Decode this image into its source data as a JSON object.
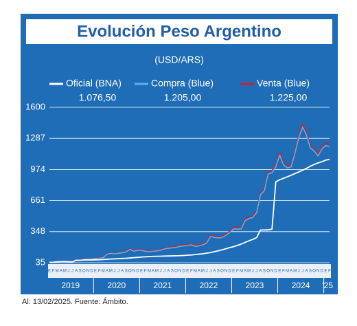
{
  "chart_data": {
    "type": "line",
    "title": "Evolución Peso Argentino",
    "subtitle": "(USD/ARS)",
    "note": "Al: 13/02/2025. Fuente: Ámbito.",
    "categories": [
      "E",
      "F",
      "M",
      "A",
      "M",
      "J",
      "J",
      "A",
      "S",
      "O",
      "N",
      "D",
      "E",
      "F",
      "M",
      "A",
      "M",
      "J",
      "J",
      "A",
      "S",
      "O",
      "N",
      "D",
      "E",
      "F",
      "M",
      "A",
      "M",
      "J",
      "J",
      "A",
      "S",
      "O",
      "N",
      "D",
      "E",
      "F",
      "M",
      "A",
      "M",
      "J",
      "J",
      "A",
      "S",
      "O",
      "N",
      "D",
      "E",
      "F",
      "M",
      "A",
      "M",
      "J",
      "J",
      "A",
      "S",
      "O",
      "N",
      "D",
      "E",
      "F",
      "M",
      "A",
      "M",
      "J",
      "J",
      "A",
      "S",
      "O",
      "N",
      "D",
      "E",
      "F"
    ],
    "years": [
      "2019",
      "2020",
      "2021",
      "2022",
      "2023",
      "2024",
      "'25"
    ],
    "series": [
      {
        "name": "Venta (Blue)",
        "color": "#d0202a",
        "latest": {
          "value": 1225,
          "label": "1.225,00"
        },
        "values": [
          40,
          42,
          45,
          47,
          48,
          46,
          46,
          63,
          63,
          71,
          73,
          75,
          81,
          83,
          89,
          125,
          136,
          130,
          136,
          141,
          152,
          178,
          158,
          167,
          167,
          157,
          152,
          157,
          162,
          168,
          183,
          188,
          194,
          199,
          209,
          214,
          220,
          225,
          210,
          215,
          225,
          245,
          312,
          302,
          297,
          302,
          322,
          352,
          389,
          390,
          390,
          478,
          496,
          506,
          556,
          740,
          780,
          960,
          960,
          1025,
          1145,
          1040,
          1010,
          1020,
          1165,
          1325,
          1430,
          1345,
          1215,
          1185,
          1130,
          1205,
          1240,
          1225
        ]
      },
      {
        "name": "Compra (Blue)",
        "color": "#5ab4e8",
        "latest": {
          "value": 1205,
          "label": "1.205,00"
        },
        "values": [
          38,
          40,
          43,
          45,
          46,
          44,
          44,
          60,
          60,
          68,
          70,
          72,
          78,
          80,
          85,
          120,
          130,
          125,
          130,
          135,
          145,
          170,
          150,
          160,
          160,
          150,
          145,
          150,
          155,
          160,
          175,
          180,
          185,
          190,
          200,
          205,
          210,
          215,
          200,
          205,
          215,
          235,
          300,
          290,
          285,
          290,
          310,
          340,
          375,
          375,
          375,
          460,
          480,
          490,
          540,
          720,
          760,
          930,
          940,
          1000,
          1120,
          1020,
          990,
          1000,
          1140,
          1300,
          1400,
          1320,
          1190,
          1160,
          1110,
          1180,
          1215,
          1205
        ]
      },
      {
        "name": "Oficial (BNA)",
        "color": "#ffffff",
        "latest": {
          "value": 1076.5,
          "label": "1.076,50"
        },
        "values": [
          39,
          40,
          44,
          46,
          47,
          45,
          44,
          60,
          59,
          63,
          63,
          63,
          64,
          65,
          67,
          70,
          72,
          74,
          76,
          78,
          80,
          83,
          86,
          89,
          92,
          95,
          97,
          99,
          100,
          101,
          102,
          103,
          104,
          105,
          106,
          108,
          111,
          113,
          117,
          121,
          125,
          132,
          137,
          147,
          155,
          165,
          176,
          187,
          197,
          210,
          223,
          240,
          256,
          270,
          288,
          365,
          365,
          366,
          373,
          850,
          870,
          885,
          900,
          916,
          933,
          950,
          967,
          985,
          1007,
          1025,
          1040,
          1052,
          1068,
          1076.5
        ]
      }
    ],
    "legend_order": [
      2,
      1,
      0
    ],
    "ylim": [
      35,
      1600
    ],
    "yticks": [
      35,
      348,
      661,
      974,
      1287,
      1600
    ],
    "grid": true
  }
}
